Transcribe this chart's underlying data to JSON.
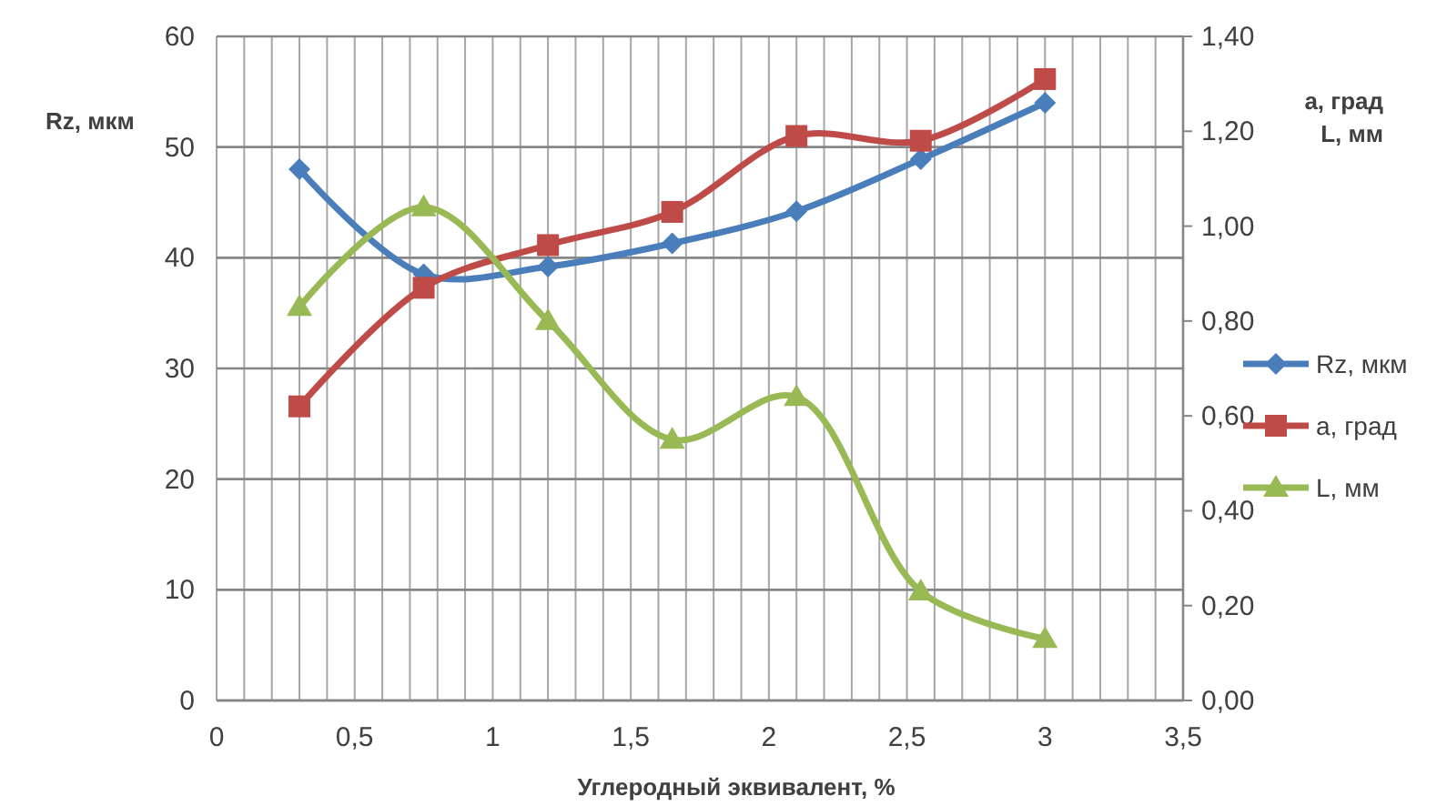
{
  "chart_data": {
    "type": "line",
    "xlabel": "Углеродный эквивалент, %",
    "ylabel": "Rz, мкм",
    "y2label": "а, град\nL, мм",
    "x": [
      0.3,
      0.75,
      1.2,
      1.65,
      2.1,
      2.55,
      3.0
    ],
    "xlim": [
      0,
      3.5
    ],
    "xticks": [
      0,
      {
        "value": 0.1,
        "label": null
      },
      {
        "value": 0.2,
        "label": null
      },
      {
        "value": 0.3,
        "label": null
      },
      {
        "value": 0.4,
        "label": null
      },
      {
        "value": 0.5,
        "label": "0,5"
      },
      {
        "value": 0.6,
        "label": null
      },
      {
        "value": 0.7,
        "label": null
      },
      {
        "value": 0.8,
        "label": null
      },
      {
        "value": 0.9,
        "label": null
      },
      1,
      {
        "value": 1.1,
        "label": null
      },
      {
        "value": 1.2,
        "label": null
      },
      {
        "value": 1.3,
        "label": null
      },
      {
        "value": 1.4,
        "label": null
      },
      {
        "value": 1.5,
        "label": "1,5"
      },
      {
        "value": 1.6,
        "label": null
      },
      {
        "value": 1.7,
        "label": null
      },
      {
        "value": 1.8,
        "label": null
      },
      {
        "value": 1.9,
        "label": null
      },
      2,
      {
        "value": 2.1,
        "label": null
      },
      {
        "value": 2.2,
        "label": null
      },
      {
        "value": 2.3,
        "label": null
      },
      {
        "value": 2.4,
        "label": null
      },
      {
        "value": 2.5,
        "label": "2,5"
      },
      {
        "value": 2.6,
        "label": null
      },
      {
        "value": 2.7,
        "label": null
      },
      {
        "value": 2.8,
        "label": null
      },
      {
        "value": 2.9,
        "label": null
      },
      3,
      {
        "value": 3.1,
        "label": null
      },
      {
        "value": 3.2,
        "label": null
      },
      {
        "value": 3.3,
        "label": null
      },
      {
        "value": 3.4,
        "label": null
      },
      {
        "value": 3.5,
        "label": "3,5"
      }
    ],
    "ylim": [
      0,
      60
    ],
    "yticks": [
      0,
      10,
      20,
      30,
      40,
      50,
      60
    ],
    "y2lim": [
      0,
      1.4
    ],
    "y2ticks": [
      {
        "value": 0,
        "label": "0,00"
      },
      {
        "value": 0.2,
        "label": "0,20"
      },
      {
        "value": 0.4,
        "label": "0,40"
      },
      {
        "value": 0.6,
        "label": "0,60"
      },
      {
        "value": 0.8,
        "label": "0,80"
      },
      {
        "value": 1.0,
        "label": "1,00"
      },
      {
        "value": 1.2,
        "label": "1,20"
      },
      {
        "value": 1.4,
        "label": "1,40"
      }
    ],
    "grid": true,
    "legend": "right",
    "line_style": "solid",
    "series": [
      {
        "name": "Rz, мкм",
        "color": "#4a7ebb",
        "marker": "diamond",
        "values": [
          48,
          38.5,
          39.2,
          41.3,
          44.2,
          48.9,
          54
        ]
      },
      {
        "name": "а, град",
        "color": "#be4b48",
        "marker": "square",
        "axis": "y2",
        "values": [
          0.62,
          0.87,
          0.96,
          1.03,
          1.19,
          1.18,
          1.31
        ]
      },
      {
        "name": "L, мм",
        "color": "#98b954",
        "marker": "triangle",
        "axis": "y2",
        "values": [
          0.83,
          1.04,
          0.8,
          0.55,
          0.64,
          0.23,
          0.13
        ]
      }
    ]
  }
}
